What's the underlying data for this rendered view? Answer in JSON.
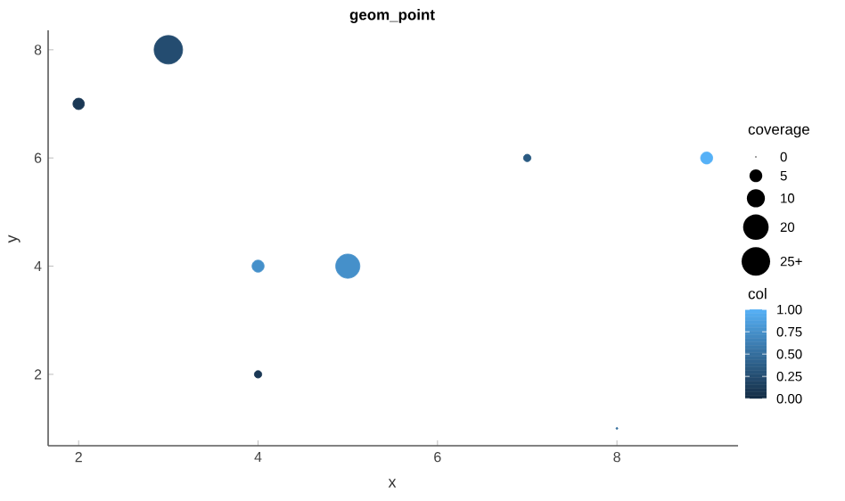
{
  "chart_data": {
    "type": "bubble",
    "title": "geom_point",
    "xlabel": "x",
    "ylabel": "y",
    "legend_title": "coverage",
    "clabel": "col",
    "x": [
      2,
      3,
      4,
      4,
      5,
      7,
      8,
      9
    ],
    "values": [
      7,
      8,
      4,
      2,
      4,
      6,
      1,
      6
    ],
    "sizes": [
      4,
      25,
      4.5,
      1.7,
      18,
      1.7,
      0.1,
      4.5
    ],
    "cvalues": [
      0.1,
      0.25,
      0.75,
      0.1,
      0.75,
      0.35,
      0.5,
      1.0
    ],
    "size_legend": [
      0,
      5,
      10,
      20,
      {
        "value": 25,
        "label": "25+"
      }
    ],
    "clim": [
      0,
      1
    ],
    "cticks": [
      {
        "value": 0,
        "label": "0.00"
      },
      {
        "value": 0.25,
        "label": "0.25"
      },
      {
        "value": 0.5,
        "label": "0.50"
      },
      {
        "value": 0.75,
        "label": "0.75"
      },
      {
        "value": 1,
        "label": "1.00"
      }
    ],
    "xlim": [
      1.66,
      9.35
    ],
    "ylim": [
      0.68,
      8.36
    ],
    "xticks": [
      2,
      4,
      6,
      8
    ],
    "yticks": [
      2,
      4,
      6,
      8
    ],
    "grid": false
  }
}
